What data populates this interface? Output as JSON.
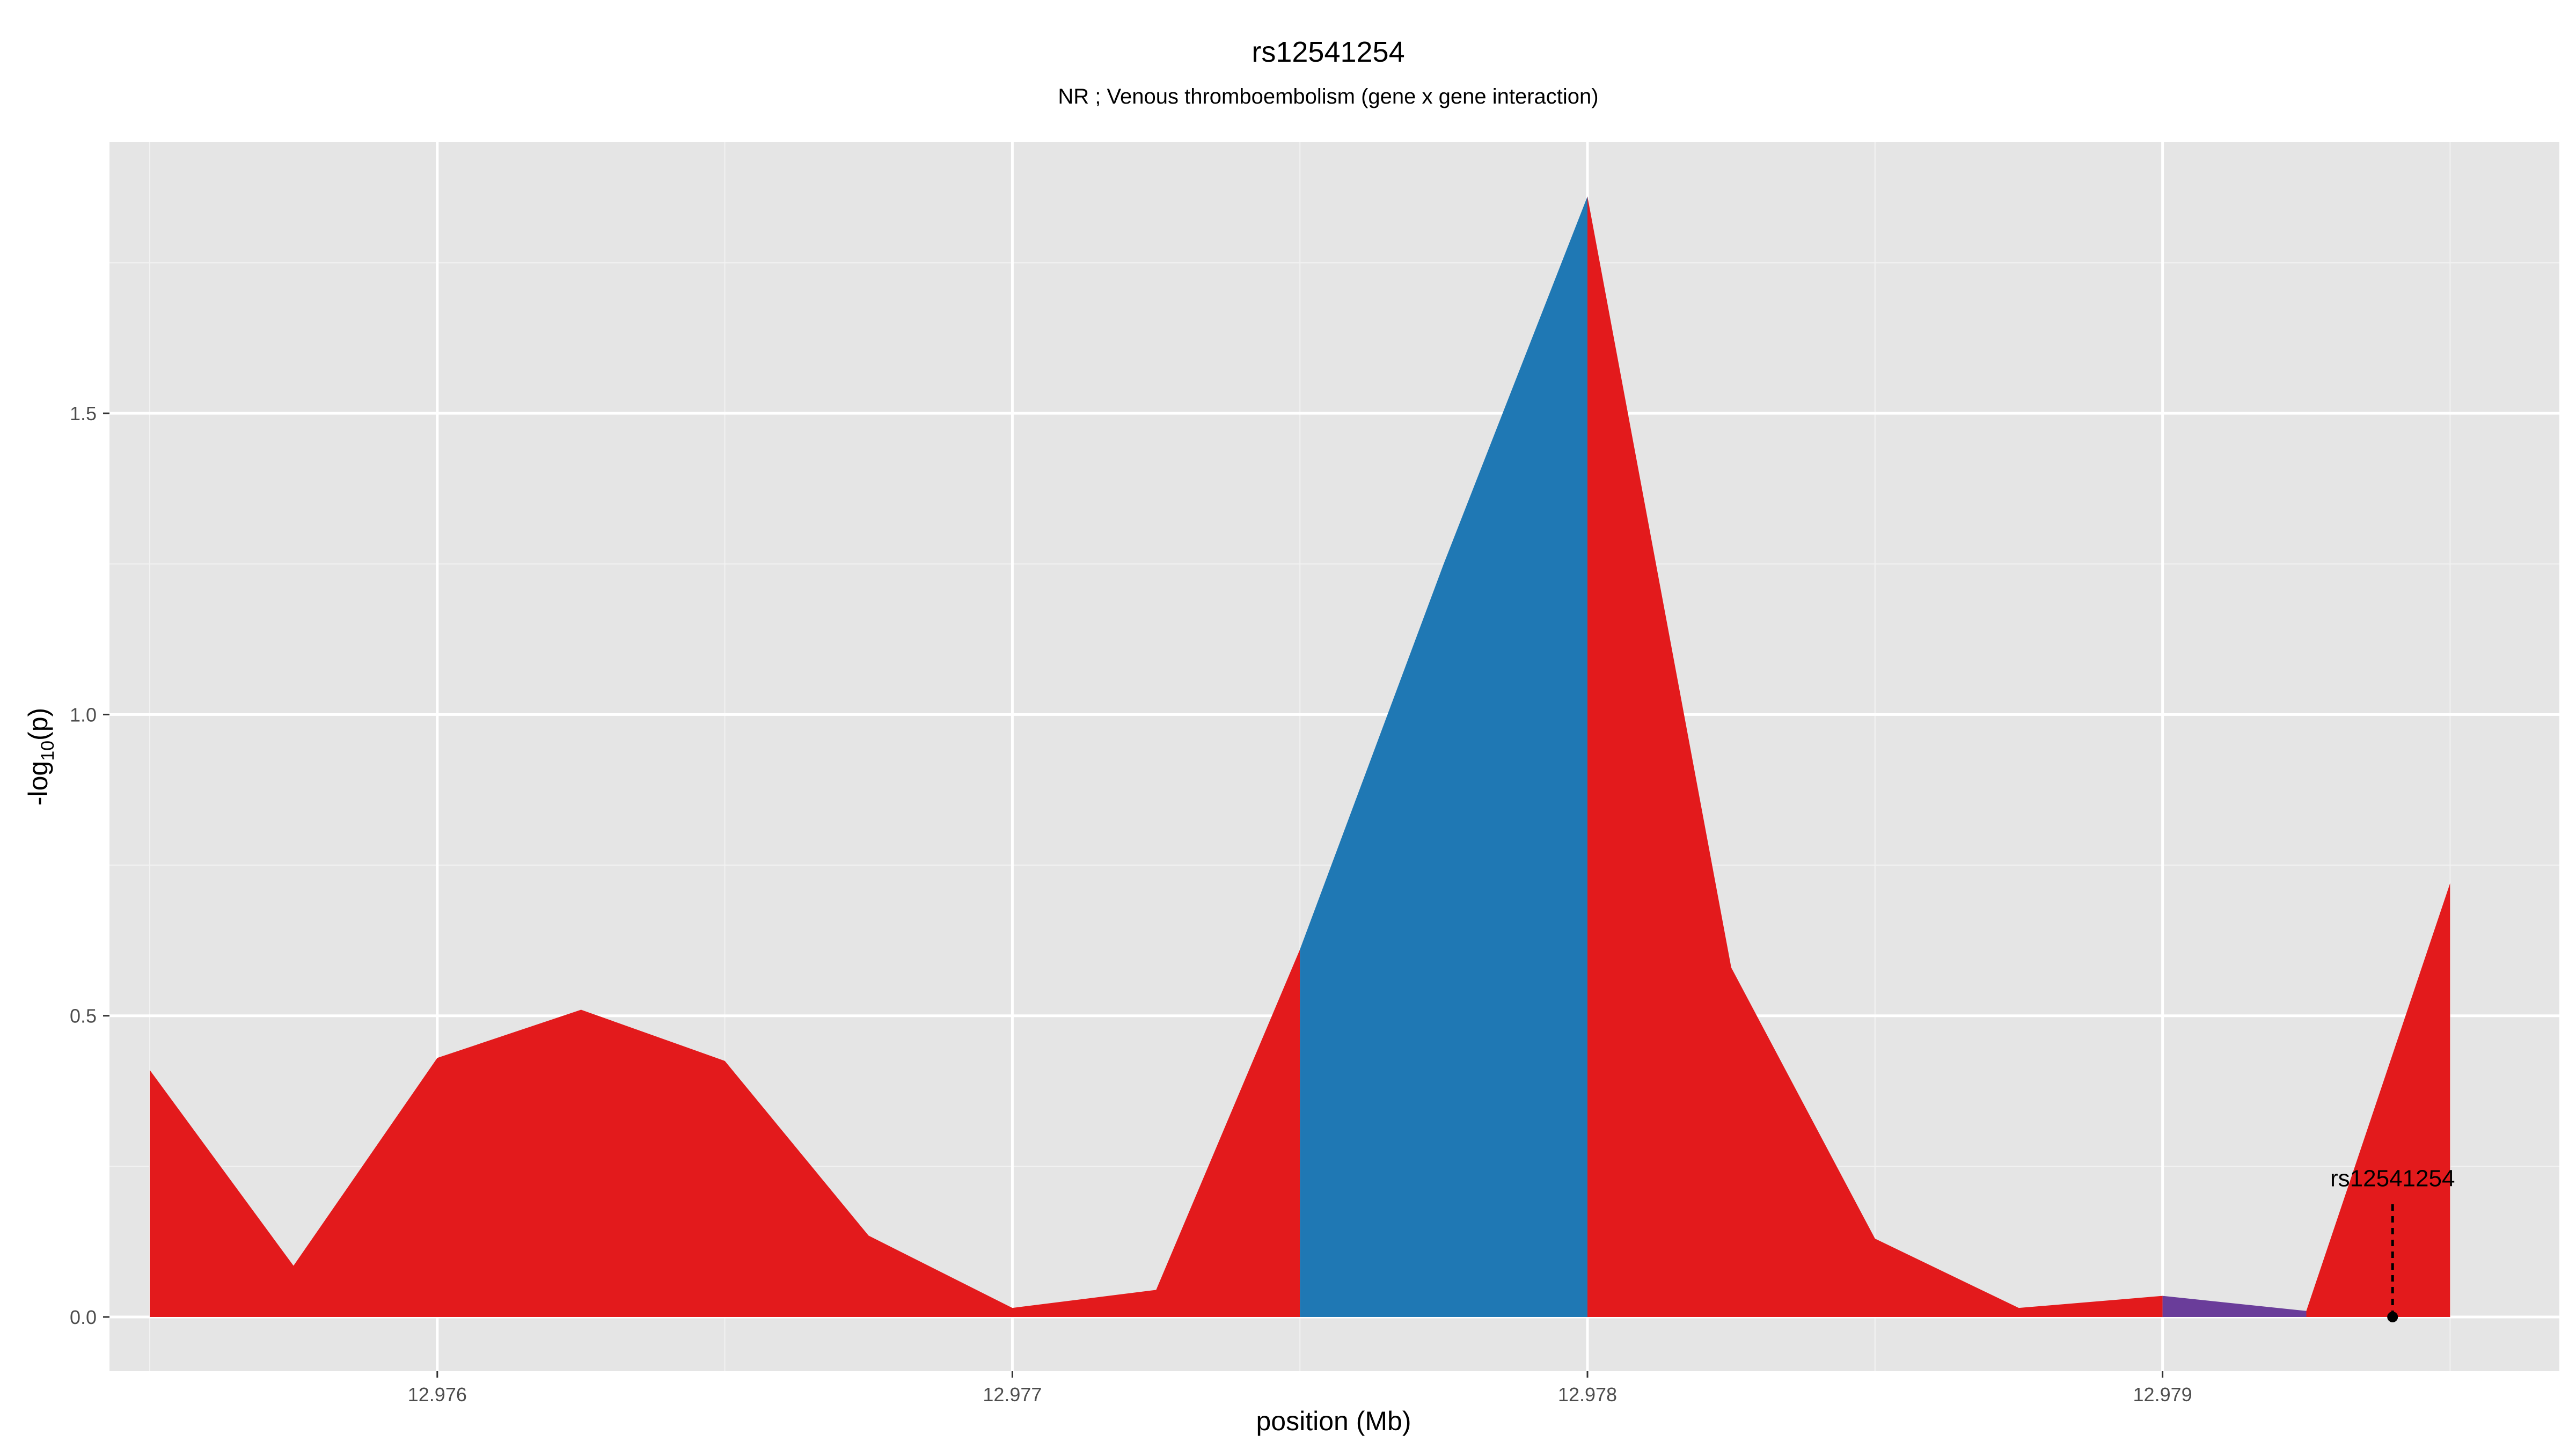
{
  "chart_data": {
    "type": "area",
    "title": "rs12541254",
    "subtitle": "NR ; Venous thromboembolism (gene x gene interaction)",
    "xlabel": "position (Mb)",
    "ylabel": "-log10(p)",
    "ylabel_parts": {
      "prefix": "-log",
      "sub": "10",
      "suffix": "(p)"
    },
    "xlim": [
      12.97543,
      12.97969
    ],
    "ylim": [
      -0.09,
      1.95
    ],
    "x_ticks": [
      12.976,
      12.977,
      12.978,
      12.979
    ],
    "x_tick_labels": [
      "12.976",
      "12.977",
      "12.978",
      "12.979"
    ],
    "y_ticks": [
      0.0,
      0.5,
      1.0,
      1.5
    ],
    "y_tick_labels": [
      "0.0",
      "0.5",
      "1.0",
      "1.5"
    ],
    "grid": true,
    "background": "#e5e5e5",
    "x": [
      12.9755,
      12.97575,
      12.976,
      12.97625,
      12.9765,
      12.97675,
      12.977,
      12.97725,
      12.9775,
      12.97775,
      12.978,
      12.97825,
      12.9785,
      12.97875,
      12.979,
      12.97925,
      12.9795
    ],
    "y": [
      0.41,
      0.085,
      0.43,
      0.51,
      0.425,
      0.135,
      0.015,
      0.045,
      0.61,
      1.25,
      1.86,
      0.58,
      0.13,
      0.015,
      0.035,
      0.01,
      0.72
    ],
    "fill_segments": [
      {
        "from": 12.9755,
        "to": 12.9775,
        "color": "#e31a1c"
      },
      {
        "from": 12.9775,
        "to": 12.978,
        "color": "#1f78b4"
      },
      {
        "from": 12.978,
        "to": 12.979,
        "color": "#e31a1c"
      },
      {
        "from": 12.979,
        "to": 12.97925,
        "color": "#6a3d9a"
      },
      {
        "from": 12.97925,
        "to": 12.9795,
        "color": "#e31a1c"
      }
    ],
    "annotations": [
      {
        "label": "rs12541254",
        "x": 12.9794,
        "y": 0.0,
        "line_top": 0.19
      }
    ]
  }
}
